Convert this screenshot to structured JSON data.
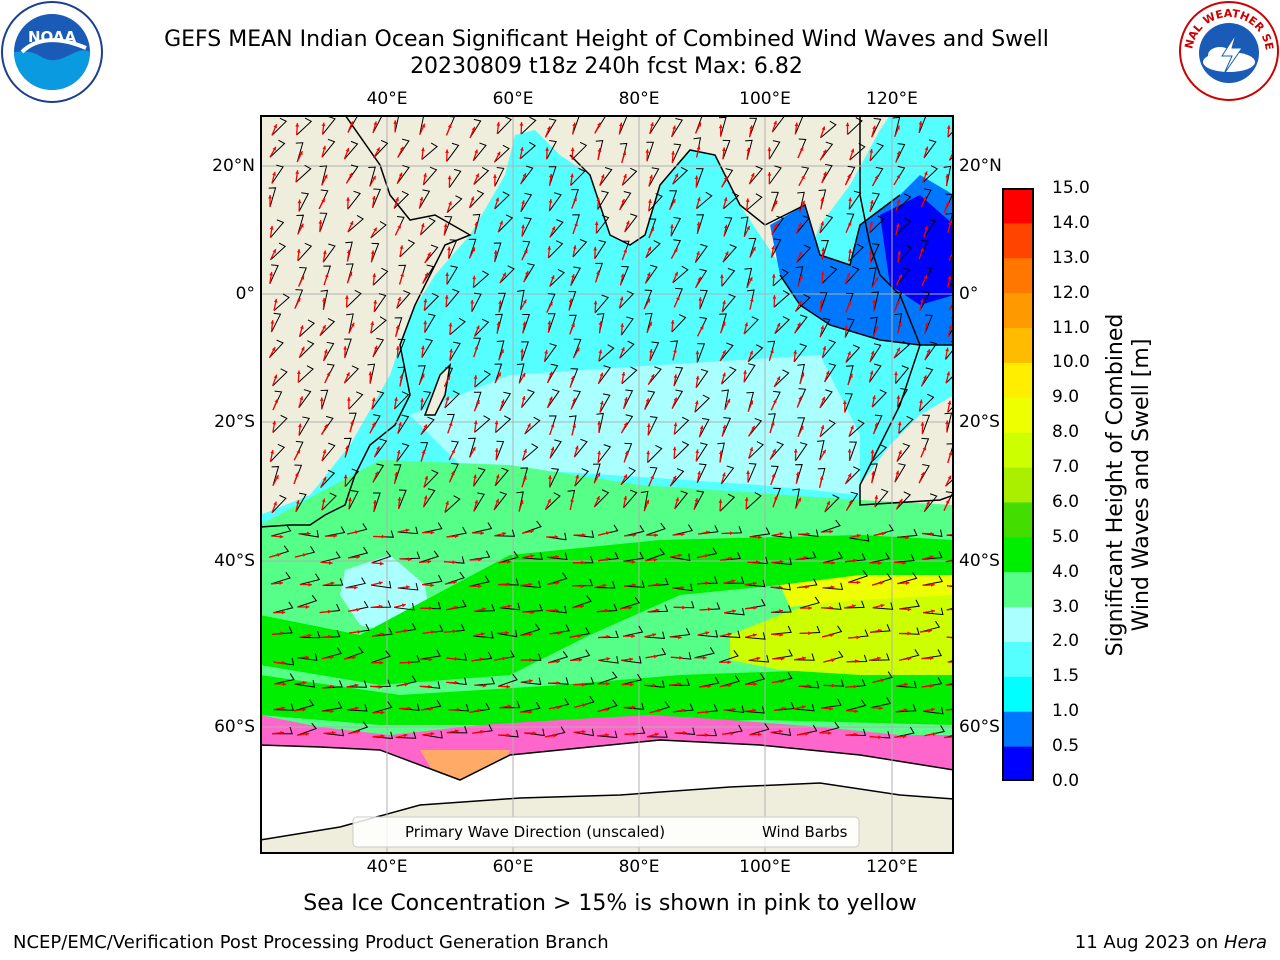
{
  "title": {
    "line1": "GEFS MEAN Indian Ocean Significant Height of Combined Wind Waves and Swell",
    "line2": "20230809 t18z 240h fcst   Max: 6.82"
  },
  "logos": {
    "left": "noaa-logo",
    "left_text": "NOAA",
    "right": "nws-logo",
    "right_text": "NATIONAL WEATHER SERVICE"
  },
  "map": {
    "lon_labels": [
      "40°E",
      "60°E",
      "80°E",
      "100°E",
      "120°E"
    ],
    "lat_labels": [
      "20°N",
      "0°",
      "20°S",
      "40°S",
      "60°S"
    ],
    "legend": {
      "wave_label": "Primary Wave Direction (unscaled)",
      "wind_label": "Wind Barbs",
      "wave_color": "#ff0000",
      "wind_color": "#000000"
    },
    "colors": {
      "land": "#efeedd",
      "ice": "#ff66cc",
      "grid": "#b0b0b0"
    }
  },
  "colorbar": {
    "title_line1": "Significant Height of Combined",
    "title_line2": "Wind Waves and Swell [m]",
    "ticks": [
      "0.0",
      "0.5",
      "1.0",
      "1.5",
      "2.0",
      "3.0",
      "4.0",
      "5.0",
      "6.0",
      "7.0",
      "8.0",
      "9.0",
      "10.0",
      "11.0",
      "12.0",
      "13.0",
      "14.0",
      "15.0"
    ],
    "colors": [
      "#0000ff",
      "#0077ff",
      "#00ffff",
      "#55ffff",
      "#aaffff",
      "#55ff88",
      "#00ee00",
      "#44dd00",
      "#aaee00",
      "#ccff00",
      "#eeff00",
      "#ffee00",
      "#ffbb00",
      "#ff9900",
      "#ff7700",
      "#ff4400",
      "#ff0000"
    ]
  },
  "caption": "Sea Ice Concentration > 15% is shown in pink to yellow",
  "footer": {
    "left": "NCEP/EMC/Verification Post Processing Product Generation Branch",
    "date": "11 Aug 2023 on ",
    "host": "Hera"
  }
}
